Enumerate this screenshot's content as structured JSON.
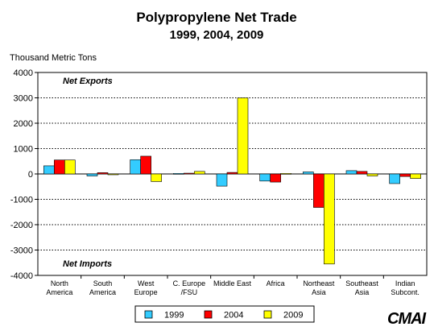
{
  "chart_data": {
    "type": "bar",
    "title": "Polypropylene Net Trade",
    "subtitle": "1999, 2004, 2009",
    "ylabel": "Thousand Metric Tons",
    "xlabel": "",
    "ylim": [
      -4000,
      4000
    ],
    "yticks": [
      4000,
      3000,
      2000,
      1000,
      0,
      -1000,
      -2000,
      -3000,
      -4000
    ],
    "grid": true,
    "legend_position": "bottom",
    "categories": [
      [
        "North",
        "America"
      ],
      [
        "South",
        "America"
      ],
      [
        "West",
        "Europe"
      ],
      [
        "C. Europe",
        "/FSU"
      ],
      [
        "Middle East"
      ],
      [
        "Africa"
      ],
      [
        "Northeast",
        "Asia"
      ],
      [
        "Southeast",
        "Asia"
      ],
      [
        "Indian",
        "Subcont."
      ]
    ],
    "series": [
      {
        "name": "1999",
        "color": "#33ccff",
        "values": [
          320,
          -80,
          560,
          20,
          -480,
          -280,
          80,
          130,
          -380
        ]
      },
      {
        "name": "2004",
        "color": "#ff0000",
        "values": [
          550,
          50,
          700,
          30,
          60,
          -320,
          -1320,
          100,
          -100
        ]
      },
      {
        "name": "2009",
        "color": "#ffff00",
        "values": [
          550,
          -30,
          -300,
          100,
          3000,
          20,
          -3550,
          -80,
          -180
        ]
      }
    ],
    "annotations": [
      {
        "text": "Net Exports",
        "anchor": "top-left"
      },
      {
        "text": "Net Imports",
        "anchor": "bottom-left"
      }
    ],
    "logo": "CMAI"
  }
}
